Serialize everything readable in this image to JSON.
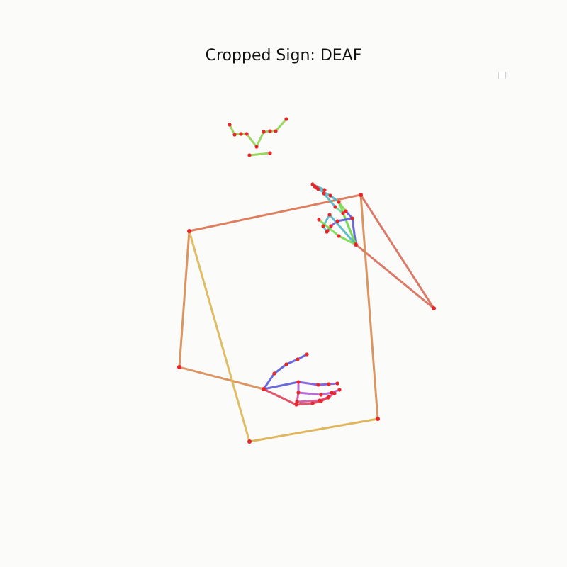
{
  "title": "Cropped Sign: DEAF",
  "chart_data": {
    "type": "diagram",
    "title": "Cropped Sign: DEAF",
    "grid": false,
    "legend": {
      "placement": "top-right",
      "entries": []
    },
    "colors": {
      "background": "#fbfcfa",
      "joint": "#e8262a",
      "face": "#8fd14f",
      "pose_top": "#d9704e",
      "pose_right": "#d66a57",
      "pose_left": "#d68a52",
      "pose_diag": "#dcb552",
      "pose_bottom": "#dcae4c",
      "hand_thumb": "#5a5ad8",
      "hand_index": "#7c55dc",
      "hand_middle": "#b35ad8",
      "hand_ring": "#d2509a",
      "hand_pinky": "#e0405a",
      "hand_right_index": "#4fb7c4",
      "hand_right_middle": "#6cd89a",
      "hand_right_base": "#7ad84f"
    },
    "face": {
      "points": [
        [
          324,
          176
        ],
        [
          331,
          190
        ],
        [
          340,
          189
        ],
        [
          348,
          189
        ],
        [
          362,
          207
        ],
        [
          372,
          186
        ],
        [
          381,
          185
        ],
        [
          389,
          185
        ],
        [
          404,
          168
        ],
        [
          352,
          219
        ],
        [
          381,
          216
        ]
      ],
      "edges": [
        [
          0,
          1
        ],
        [
          1,
          2
        ],
        [
          2,
          3
        ],
        [
          3,
          4
        ],
        [
          4,
          5
        ],
        [
          5,
          6
        ],
        [
          6,
          7
        ],
        [
          7,
          8
        ],
        [
          9,
          10
        ]
      ]
    },
    "pose": {
      "points": [
        [
          267,
          326
        ],
        [
          509,
          275
        ],
        [
          612,
          435
        ],
        [
          502,
          345
        ],
        [
          253,
          518
        ],
        [
          372,
          549
        ],
        [
          352,
          623
        ],
        [
          533,
          591
        ]
      ],
      "edges": [
        {
          "a": 0,
          "b": 1,
          "color": "pose_top"
        },
        {
          "a": 1,
          "b": 2,
          "color": "pose_right"
        },
        {
          "a": 2,
          "b": 3,
          "color": "pose_right"
        },
        {
          "a": 1,
          "b": 7,
          "color": "pose_left"
        },
        {
          "a": 0,
          "b": 4,
          "color": "pose_left"
        },
        {
          "a": 4,
          "b": 5,
          "color": "pose_left"
        },
        {
          "a": 0,
          "b": 6,
          "color": "pose_diag"
        },
        {
          "a": 6,
          "b": 7,
          "color": "pose_bottom"
        }
      ]
    },
    "left_hand": {
      "points": [
        [
          372,
          549
        ],
        [
          387,
          527
        ],
        [
          404,
          514
        ],
        [
          420,
          507
        ],
        [
          433,
          500
        ],
        [
          421,
          539
        ],
        [
          449,
          543
        ],
        [
          464,
          542
        ],
        [
          476,
          541
        ],
        [
          421,
          554
        ],
        [
          453,
          557
        ],
        [
          468,
          554
        ],
        [
          479,
          550
        ],
        [
          419,
          567
        ],
        [
          451,
          565
        ],
        [
          464,
          560
        ],
        [
          472,
          555
        ],
        [
          418,
          571
        ],
        [
          441,
          569
        ],
        [
          453,
          566
        ],
        [
          463,
          561
        ]
      ],
      "edges": [
        {
          "a": 0,
          "b": 1,
          "color": "hand_thumb"
        },
        {
          "a": 1,
          "b": 2,
          "color": "hand_thumb"
        },
        {
          "a": 2,
          "b": 3,
          "color": "hand_thumb"
        },
        {
          "a": 3,
          "b": 4,
          "color": "hand_thumb"
        },
        {
          "a": 0,
          "b": 5,
          "color": "hand_thumb"
        },
        {
          "a": 5,
          "b": 6,
          "color": "hand_index"
        },
        {
          "a": 6,
          "b": 7,
          "color": "hand_index"
        },
        {
          "a": 7,
          "b": 8,
          "color": "hand_index"
        },
        {
          "a": 5,
          "b": 9,
          "color": "hand_middle"
        },
        {
          "a": 9,
          "b": 10,
          "color": "hand_middle"
        },
        {
          "a": 10,
          "b": 11,
          "color": "hand_middle"
        },
        {
          "a": 11,
          "b": 12,
          "color": "hand_middle"
        },
        {
          "a": 9,
          "b": 13,
          "color": "hand_ring"
        },
        {
          "a": 13,
          "b": 14,
          "color": "hand_ring"
        },
        {
          "a": 14,
          "b": 15,
          "color": "hand_ring"
        },
        {
          "a": 15,
          "b": 16,
          "color": "hand_ring"
        },
        {
          "a": 0,
          "b": 17,
          "color": "hand_pinky"
        },
        {
          "a": 13,
          "b": 17,
          "color": "hand_pinky"
        },
        {
          "a": 17,
          "b": 18,
          "color": "hand_pinky"
        },
        {
          "a": 18,
          "b": 19,
          "color": "hand_pinky"
        },
        {
          "a": 19,
          "b": 20,
          "color": "hand_pinky"
        }
      ]
    },
    "right_hand": {
      "points": [
        [
          502,
          345
        ],
        [
          497,
          308
        ],
        [
          488,
          298
        ],
        [
          478,
          285
        ],
        [
          458,
          268
        ],
        [
          441,
          260
        ],
        [
          484,
          301
        ],
        [
          473,
          292
        ],
        [
          457,
          273
        ],
        [
          447,
          265
        ],
        [
          476,
          312
        ],
        [
          467,
          319
        ],
        [
          462,
          326
        ],
        [
          450,
          310
        ],
        [
          465,
          303
        ],
        [
          456,
          319
        ],
        [
          461,
          327
        ],
        [
          478,
          333
        ],
        [
          466,
          276
        ],
        [
          449,
          267
        ],
        [
          444,
          263
        ]
      ],
      "edges": [
        {
          "a": 0,
          "b": 1,
          "color": "hand_thumb"
        },
        {
          "a": 1,
          "b": 2,
          "color": "hand_thumb"
        },
        {
          "a": 2,
          "b": 3,
          "color": "hand_right_base"
        },
        {
          "a": 0,
          "b": 6,
          "color": "hand_right_middle"
        },
        {
          "a": 6,
          "b": 7,
          "color": "hand_right_middle"
        },
        {
          "a": 7,
          "b": 8,
          "color": "hand_right_index"
        },
        {
          "a": 8,
          "b": 4,
          "color": "hand_right_index"
        },
        {
          "a": 4,
          "b": 5,
          "color": "hand_right_index"
        },
        {
          "a": 0,
          "b": 3,
          "color": "hand_right_base"
        },
        {
          "a": 3,
          "b": 18,
          "color": "hand_right_index"
        },
        {
          "a": 18,
          "b": 19,
          "color": "hand_right_index"
        },
        {
          "a": 19,
          "b": 20,
          "color": "hand_right_index"
        },
        {
          "a": 1,
          "b": 10,
          "color": "hand_thumb"
        },
        {
          "a": 10,
          "b": 11,
          "color": "hand_index"
        },
        {
          "a": 11,
          "b": 12,
          "color": "hand_index"
        },
        {
          "a": 0,
          "b": 14,
          "color": "hand_right_index"
        },
        {
          "a": 14,
          "b": 15,
          "color": "hand_right_index"
        },
        {
          "a": 15,
          "b": 16,
          "color": "hand_right_index"
        },
        {
          "a": 0,
          "b": 17,
          "color": "hand_right_base"
        },
        {
          "a": 17,
          "b": 13,
          "color": "hand_right_base"
        }
      ]
    }
  }
}
